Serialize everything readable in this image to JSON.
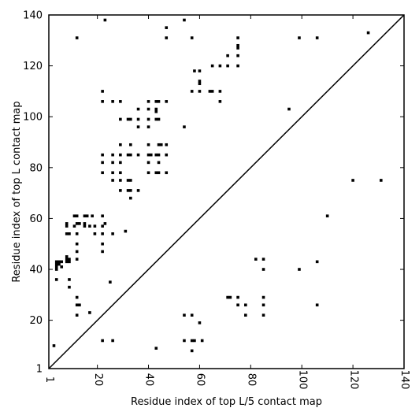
{
  "chart_data": {
    "type": "scatter",
    "xlabel": "Residue index of top L/5 contact map",
    "ylabel": "Residue index of top L contact map",
    "xlim": [
      1,
      140
    ],
    "ylim": [
      1,
      140
    ],
    "xticks": [
      1,
      20,
      40,
      60,
      80,
      100,
      120,
      140
    ],
    "yticks": [
      1,
      20,
      40,
      60,
      80,
      100,
      120,
      140
    ],
    "xtick_labels": [
      "1",
      "20",
      "40",
      "60",
      "80",
      "100",
      "120",
      "140"
    ],
    "ytick_labels": [
      "1",
      "20",
      "40",
      "60",
      "80",
      "100",
      "120",
      "140"
    ],
    "diagonal": true,
    "grid": false,
    "marker_color": "#000000",
    "series": [
      {
        "points": [
          [
            23,
            138
          ],
          [
            54,
            138
          ],
          [
            12,
            131
          ],
          [
            47,
            131
          ],
          [
            47,
            135
          ],
          [
            57,
            131
          ],
          [
            75,
            131
          ],
          [
            99,
            131
          ],
          [
            106,
            131
          ],
          [
            126,
            133
          ],
          [
            75,
            128
          ],
          [
            75,
            127
          ],
          [
            71,
            124
          ],
          [
            75,
            124
          ],
          [
            65,
            120
          ],
          [
            68,
            120
          ],
          [
            71,
            120
          ],
          [
            75,
            120
          ],
          [
            58,
            118
          ],
          [
            60,
            118
          ],
          [
            60,
            114
          ],
          [
            60,
            113
          ],
          [
            57,
            110
          ],
          [
            60,
            110
          ],
          [
            64,
            110
          ],
          [
            65,
            110
          ],
          [
            68,
            110
          ],
          [
            22,
            110
          ],
          [
            22,
            106
          ],
          [
            26,
            106
          ],
          [
            29,
            106
          ],
          [
            40,
            106
          ],
          [
            43,
            106
          ],
          [
            44,
            106
          ],
          [
            47,
            106
          ],
          [
            68,
            106
          ],
          [
            36,
            103
          ],
          [
            40,
            103
          ],
          [
            43,
            103
          ],
          [
            43,
            102
          ],
          [
            95,
            103
          ],
          [
            29,
            99
          ],
          [
            32,
            99
          ],
          [
            33,
            99
          ],
          [
            36,
            99
          ],
          [
            40,
            99
          ],
          [
            43,
            99
          ],
          [
            44,
            99
          ],
          [
            36,
            96
          ],
          [
            40,
            96
          ],
          [
            54,
            96
          ],
          [
            29,
            89
          ],
          [
            33,
            89
          ],
          [
            40,
            89
          ],
          [
            44,
            89
          ],
          [
            45,
            89
          ],
          [
            47,
            89
          ],
          [
            22,
            85
          ],
          [
            26,
            85
          ],
          [
            29,
            85
          ],
          [
            32,
            85
          ],
          [
            33,
            85
          ],
          [
            36,
            85
          ],
          [
            40,
            85
          ],
          [
            41,
            85
          ],
          [
            43,
            85
          ],
          [
            44,
            85
          ],
          [
            47,
            85
          ],
          [
            22,
            82
          ],
          [
            26,
            82
          ],
          [
            29,
            82
          ],
          [
            40,
            82
          ],
          [
            44,
            82
          ],
          [
            22,
            78
          ],
          [
            26,
            78
          ],
          [
            29,
            78
          ],
          [
            40,
            78
          ],
          [
            43,
            78
          ],
          [
            44,
            78
          ],
          [
            47,
            78
          ],
          [
            26,
            75
          ],
          [
            29,
            75
          ],
          [
            32,
            75
          ],
          [
            33,
            75
          ],
          [
            120,
            75
          ],
          [
            131,
            75
          ],
          [
            29,
            71
          ],
          [
            32,
            71
          ],
          [
            33,
            71
          ],
          [
            36,
            71
          ],
          [
            33,
            68
          ],
          [
            11,
            61
          ],
          [
            12,
            61
          ],
          [
            15,
            61
          ],
          [
            16,
            61
          ],
          [
            18,
            61
          ],
          [
            22,
            61
          ],
          [
            110,
            61
          ],
          [
            8,
            58
          ],
          [
            11,
            57
          ],
          [
            12,
            58
          ],
          [
            13,
            58
          ],
          [
            15,
            58
          ],
          [
            15,
            57
          ],
          [
            17,
            57
          ],
          [
            19,
            57
          ],
          [
            22,
            57
          ],
          [
            23,
            58
          ],
          [
            8,
            57
          ],
          [
            8,
            54
          ],
          [
            9,
            54
          ],
          [
            12,
            54
          ],
          [
            19,
            54
          ],
          [
            22,
            54
          ],
          [
            26,
            54
          ],
          [
            31,
            55
          ],
          [
            12,
            50
          ],
          [
            22,
            50
          ],
          [
            12,
            47
          ],
          [
            22,
            47
          ],
          [
            4,
            43
          ],
          [
            5,
            43
          ],
          [
            6,
            43
          ],
          [
            8,
            44
          ],
          [
            9,
            43
          ],
          [
            8,
            45
          ],
          [
            9,
            44
          ],
          [
            8,
            43
          ],
          [
            4,
            42
          ],
          [
            5,
            42
          ],
          [
            4,
            41
          ],
          [
            6,
            41
          ],
          [
            4,
            40
          ],
          [
            12,
            44
          ],
          [
            82,
            44
          ],
          [
            85,
            44
          ],
          [
            85,
            40
          ],
          [
            99,
            40
          ],
          [
            106,
            43
          ],
          [
            4,
            36
          ],
          [
            9,
            36
          ],
          [
            25,
            35
          ],
          [
            9,
            33
          ],
          [
            12,
            29
          ],
          [
            71,
            29
          ],
          [
            72,
            29
          ],
          [
            75,
            29
          ],
          [
            85,
            29
          ],
          [
            12,
            26
          ],
          [
            13,
            26
          ],
          [
            75,
            26
          ],
          [
            78,
            26
          ],
          [
            85,
            26
          ],
          [
            106,
            26
          ],
          [
            17,
            23
          ],
          [
            12,
            22
          ],
          [
            54,
            22
          ],
          [
            57,
            22
          ],
          [
            78,
            22
          ],
          [
            85,
            22
          ],
          [
            60,
            19
          ],
          [
            22,
            12
          ],
          [
            26,
            12
          ],
          [
            54,
            12
          ],
          [
            57,
            12
          ],
          [
            58,
            12
          ],
          [
            61,
            12
          ],
          [
            3,
            10
          ],
          [
            43,
            9
          ],
          [
            57,
            8
          ]
        ]
      }
    ]
  }
}
